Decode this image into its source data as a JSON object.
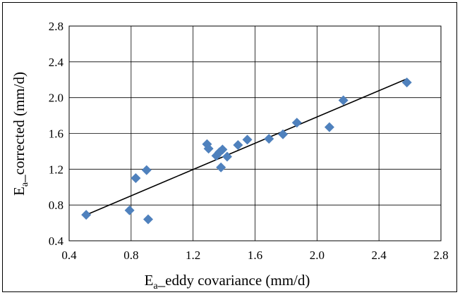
{
  "chart_data": {
    "type": "scatter",
    "title": "",
    "xlabel": {
      "base": "E",
      "sub": "a",
      "rest": "_eddy covariance (mm/d)"
    },
    "ylabel": {
      "base": "E",
      "sub": "a",
      "rest": "_corrected (mm/d)"
    },
    "xlim": [
      0.4,
      2.8
    ],
    "ylim": [
      0.4,
      2.8
    ],
    "xticks": [
      "0.4",
      "0.8",
      "1.2",
      "1.6",
      "2.0",
      "2.4",
      "2.8"
    ],
    "yticks": [
      "0.4",
      "0.8",
      "1.2",
      "1.6",
      "2.0",
      "2.4",
      "2.8"
    ],
    "grid": true,
    "legend": "none",
    "marker": "diamond",
    "marker_color": "#4f81bd",
    "trendline_color": "#000000",
    "series": [
      {
        "points": [
          {
            "x": 0.51,
            "y": 0.69
          },
          {
            "x": 0.79,
            "y": 0.74
          },
          {
            "x": 0.83,
            "y": 1.1
          },
          {
            "x": 0.91,
            "y": 0.64
          },
          {
            "x": 0.9,
            "y": 1.19
          },
          {
            "x": 1.29,
            "y": 1.48
          },
          {
            "x": 1.3,
            "y": 1.43
          },
          {
            "x": 1.35,
            "y": 1.35
          },
          {
            "x": 1.37,
            "y": 1.39
          },
          {
            "x": 1.38,
            "y": 1.22
          },
          {
            "x": 1.39,
            "y": 1.42
          },
          {
            "x": 1.42,
            "y": 1.34
          },
          {
            "x": 1.49,
            "y": 1.47
          },
          {
            "x": 1.55,
            "y": 1.53
          },
          {
            "x": 1.69,
            "y": 1.54
          },
          {
            "x": 1.78,
            "y": 1.59
          },
          {
            "x": 1.87,
            "y": 1.72
          },
          {
            "x": 2.08,
            "y": 1.67
          },
          {
            "x": 2.17,
            "y": 1.97
          },
          {
            "x": 2.58,
            "y": 2.17
          }
        ]
      }
    ],
    "trendline": {
      "x": [
        0.51,
        2.58
      ],
      "y": [
        0.69,
        2.21
      ]
    }
  }
}
